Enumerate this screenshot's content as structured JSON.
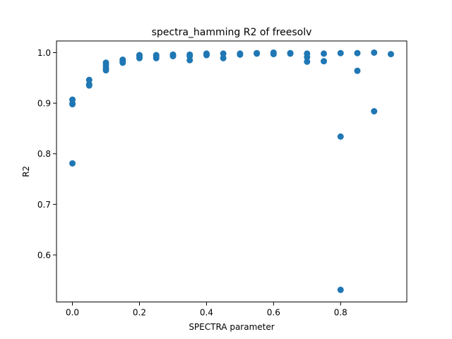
{
  "chart_data": {
    "type": "scatter",
    "title": "spectra_hamming R2 of freesolv",
    "xlabel": "SPECTRA parameter",
    "ylabel": "R2",
    "xlim": [
      -0.0475,
      0.9975
    ],
    "ylim": [
      0.507,
      1.023
    ],
    "xticks": [
      0.0,
      0.2,
      0.4,
      0.6,
      0.8
    ],
    "xtick_labels": [
      "0.0",
      "0.2",
      "0.4",
      "0.6",
      "0.8"
    ],
    "yticks": [
      0.6,
      0.7,
      0.8,
      0.9,
      1.0
    ],
    "ytick_labels": [
      "0.6",
      "0.7",
      "0.8",
      "0.9",
      "1.0"
    ],
    "grid": false,
    "legend": "none",
    "marker_color": "#1f77b4",
    "series": [
      {
        "x": [
          0.0,
          0.0,
          0.0,
          0.0,
          0.05,
          0.05,
          0.05,
          0.1,
          0.1,
          0.1,
          0.1,
          0.15,
          0.15,
          0.15,
          0.2,
          0.2,
          0.2,
          0.25,
          0.25,
          0.25,
          0.3,
          0.3,
          0.3,
          0.35,
          0.35,
          0.35,
          0.4,
          0.4,
          0.4,
          0.45,
          0.45,
          0.5,
          0.5,
          0.55,
          0.55,
          0.6,
          0.6,
          0.65,
          0.65,
          0.7,
          0.7,
          0.7,
          0.75,
          0.75,
          0.8,
          0.8,
          0.8,
          0.85,
          0.85,
          0.9,
          0.9,
          0.95
        ],
        "y": [
          0.907,
          0.899,
          0.898,
          0.781,
          0.946,
          0.937,
          0.935,
          0.98,
          0.975,
          0.97,
          0.965,
          0.986,
          0.983,
          0.98,
          0.995,
          0.993,
          0.989,
          0.995,
          0.993,
          0.989,
          0.996,
          0.994,
          0.993,
          0.996,
          0.993,
          0.985,
          0.998,
          0.997,
          0.995,
          0.998,
          0.989,
          0.998,
          0.996,
          0.999,
          0.998,
          1.0,
          0.997,
          0.999,
          0.998,
          0.998,
          0.991,
          0.982,
          0.998,
          0.983,
          0.999,
          0.834,
          0.531,
          0.999,
          0.964,
          1.0,
          0.884,
          0.997
        ]
      }
    ]
  }
}
